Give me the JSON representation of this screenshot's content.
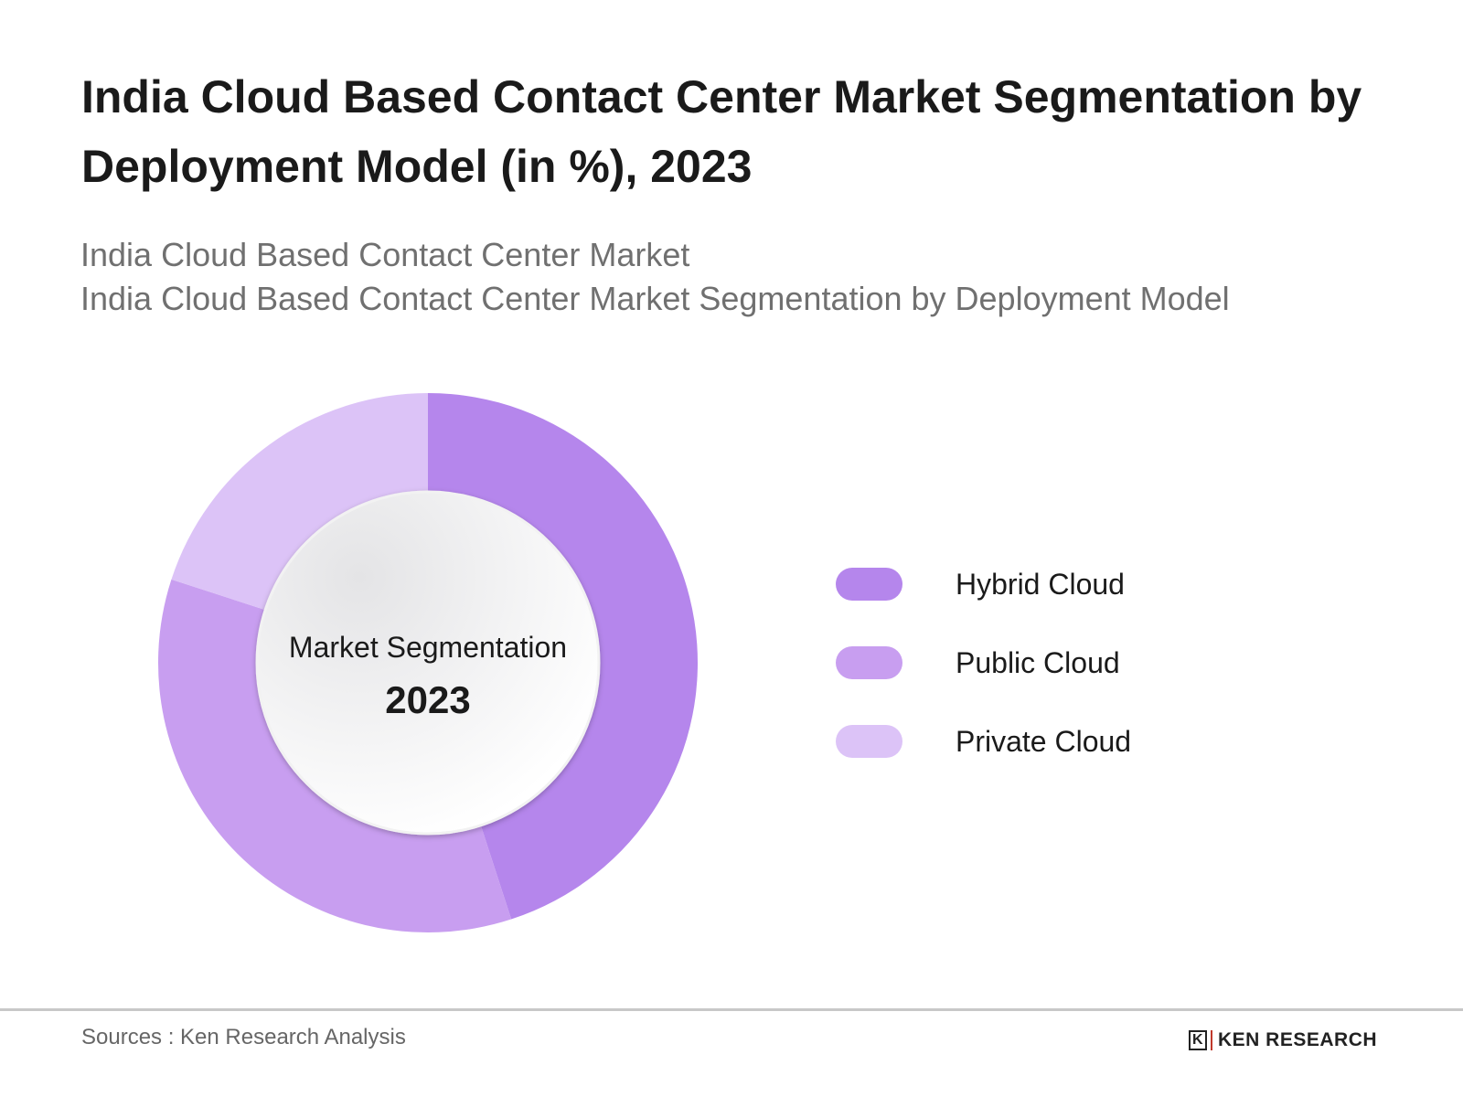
{
  "header": {
    "title": "India Cloud Based Contact Center Market Segmentation by Deployment Model (in %), 2023",
    "subtitle_1": "India Cloud Based Contact Center Market",
    "subtitle_2": "India Cloud Based Contact Center Market Segmentation by Deployment Model"
  },
  "chart_data": {
    "type": "pie",
    "variant": "donut",
    "title": "India Cloud Based Contact Center Market Segmentation by Deployment Model (in %), 2023",
    "center_label": "Market Segmentation",
    "center_value": "2023",
    "categories": [
      "Hybrid Cloud",
      "Public Cloud",
      "Private Cloud"
    ],
    "values": [
      45,
      35,
      20
    ],
    "colors": [
      "#b586ec",
      "#c89ef0",
      "#dcc3f7"
    ],
    "legend_position": "right"
  },
  "footer": {
    "source": "Sources : Ken Research Analysis",
    "logo_text": "KEN RESEARCH"
  }
}
